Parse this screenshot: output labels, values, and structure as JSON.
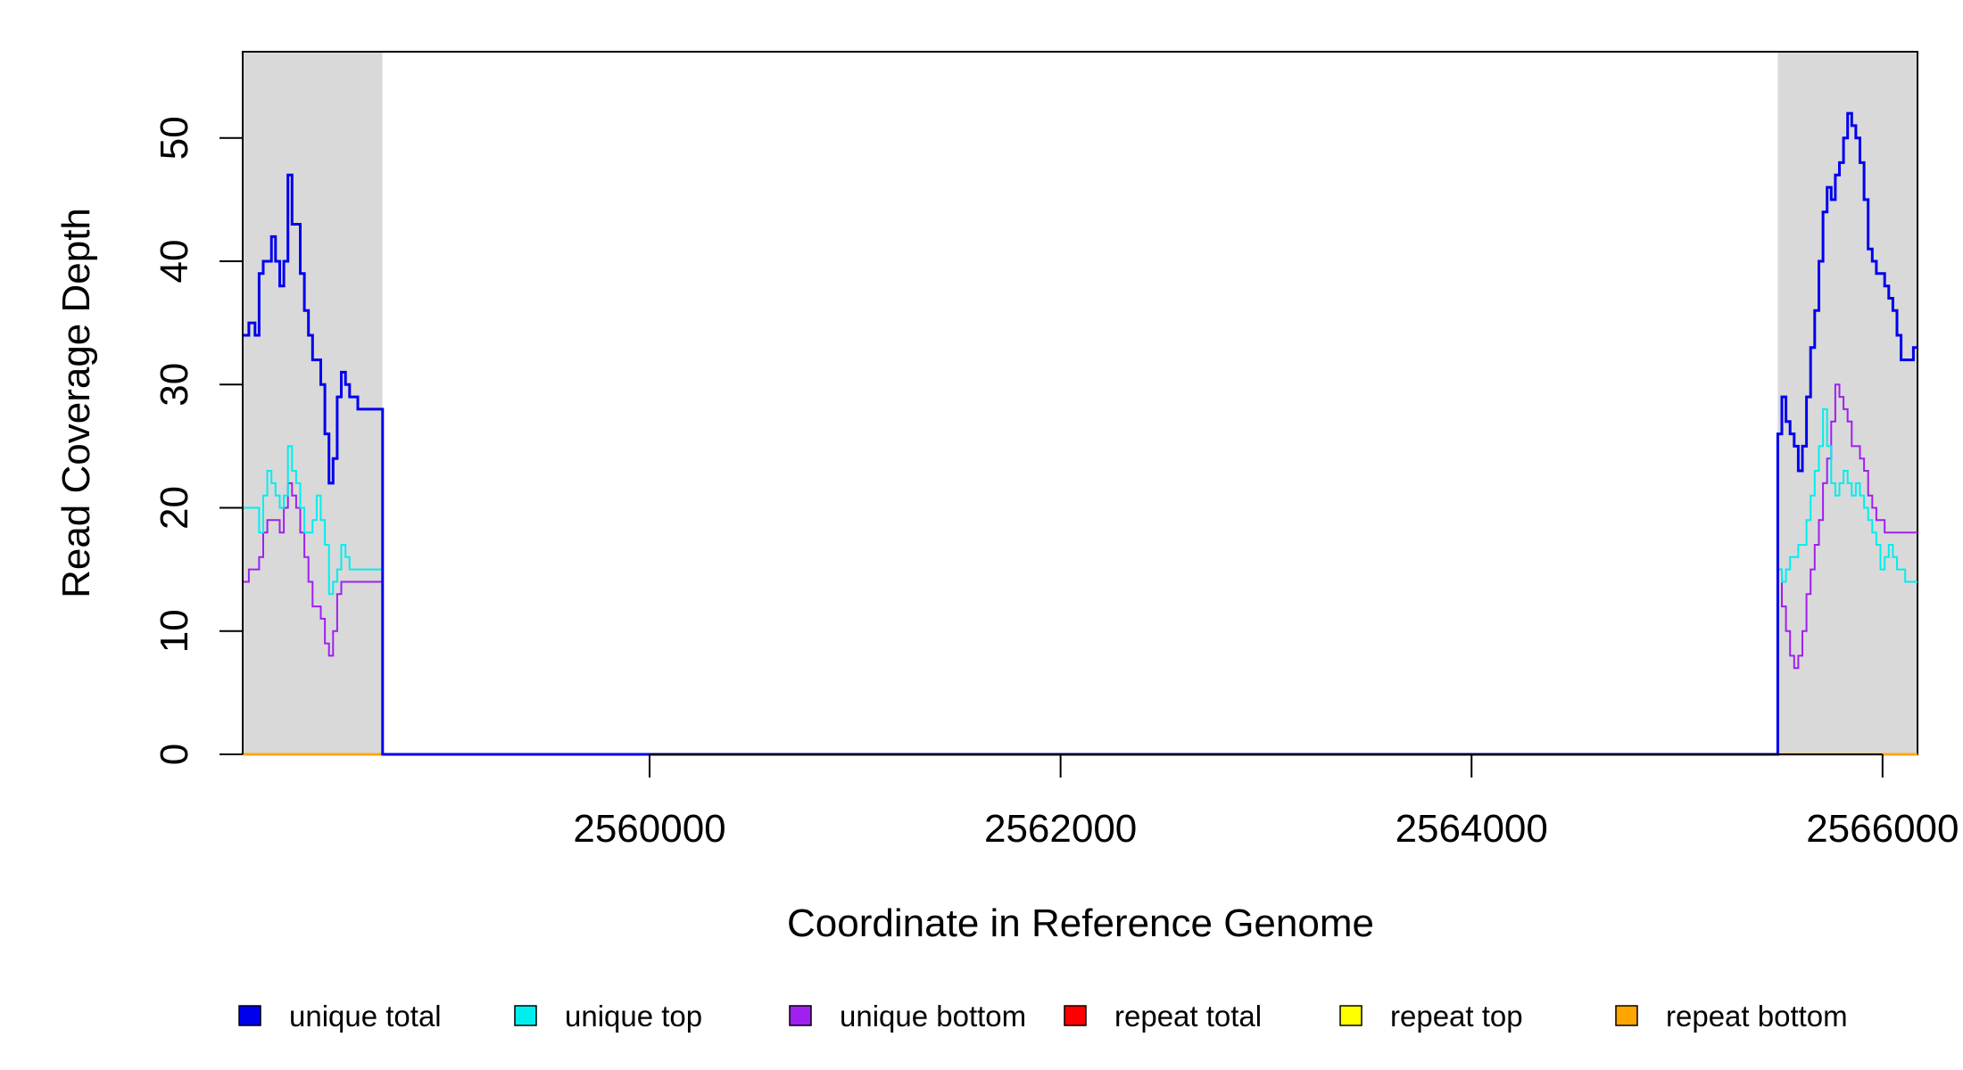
{
  "chart_data": {
    "type": "line",
    "title": "",
    "xlabel": "Coordinate in Reference Genome",
    "ylabel": "Read Coverage Depth",
    "xlim": [
      2558020,
      2566170
    ],
    "ylim": [
      0,
      57
    ],
    "x_ticks": [
      2560000,
      2562000,
      2564000,
      2566000
    ],
    "x_tick_labels": [
      "2560000",
      "2562000",
      "2564000",
      "2566000"
    ],
    "y_ticks": [
      0,
      10,
      20,
      30,
      40,
      50
    ],
    "y_tick_labels": [
      "0",
      "10",
      "20",
      "30",
      "40",
      "50"
    ],
    "highlight_regions": [
      {
        "start": 2558020,
        "end": 2558700,
        "color": "#d9d9d9"
      },
      {
        "start": 2565490,
        "end": 2566170,
        "color": "#d9d9d9"
      }
    ],
    "legend_position": "bottom",
    "series": [
      {
        "name": "unique total",
        "color": "#0000ee",
        "x": [
          2558020,
          2558050,
          2558080,
          2558100,
          2558120,
          2558140,
          2558160,
          2558180,
          2558200,
          2558220,
          2558240,
          2558260,
          2558280,
          2558300,
          2558320,
          2558340,
          2558360,
          2558380,
          2558400,
          2558420,
          2558440,
          2558460,
          2558480,
          2558500,
          2558520,
          2558540,
          2558560,
          2558580,
          2558600,
          2558620,
          2558640,
          2558660,
          2558680,
          2558700,
          2558701,
          2565489,
          2565490,
          2565510,
          2565530,
          2565550,
          2565570,
          2565590,
          2565610,
          2565630,
          2565650,
          2565670,
          2565690,
          2565710,
          2565730,
          2565750,
          2565770,
          2565790,
          2565810,
          2565830,
          2565850,
          2565870,
          2565890,
          2565910,
          2565930,
          2565950,
          2565970,
          2565990,
          2566010,
          2566030,
          2566050,
          2566070,
          2566090,
          2566110,
          2566130,
          2566150,
          2566170
        ],
        "y": [
          34,
          35,
          34,
          39,
          40,
          40,
          42,
          40,
          38,
          40,
          47,
          43,
          43,
          39,
          36,
          34,
          32,
          32,
          30,
          26,
          22,
          24,
          29,
          31,
          30,
          29,
          29,
          28,
          28,
          28,
          28,
          28,
          28,
          28,
          0,
          0,
          26,
          29,
          27,
          26,
          25,
          23,
          25,
          29,
          33,
          36,
          40,
          44,
          46,
          45,
          47,
          48,
          50,
          52,
          51,
          50,
          48,
          45,
          41,
          40,
          39,
          39,
          38,
          37,
          36,
          34,
          32,
          32,
          32,
          33,
          33
        ]
      },
      {
        "name": "unique top",
        "color": "#00eeee",
        "x": [
          2558020,
          2558050,
          2558080,
          2558100,
          2558120,
          2558140,
          2558160,
          2558180,
          2558200,
          2558220,
          2558240,
          2558260,
          2558280,
          2558300,
          2558320,
          2558340,
          2558360,
          2558380,
          2558400,
          2558420,
          2558440,
          2558460,
          2558480,
          2558500,
          2558520,
          2558540,
          2558560,
          2558580,
          2558600,
          2558620,
          2558640,
          2558660,
          2558680,
          2558700,
          2558701,
          2565489,
          2565490,
          2565510,
          2565530,
          2565550,
          2565570,
          2565590,
          2565610,
          2565630,
          2565650,
          2565670,
          2565690,
          2565710,
          2565730,
          2565750,
          2565770,
          2565790,
          2565810,
          2565830,
          2565850,
          2565870,
          2565890,
          2565910,
          2565930,
          2565950,
          2565970,
          2565990,
          2566010,
          2566030,
          2566050,
          2566070,
          2566090,
          2566110,
          2566130,
          2566150,
          2566170
        ],
        "y": [
          20,
          20,
          20,
          18,
          21,
          23,
          22,
          21,
          20,
          21,
          25,
          23,
          22,
          20,
          18,
          18,
          19,
          21,
          19,
          17,
          13,
          14,
          15,
          17,
          16,
          15,
          15,
          15,
          15,
          15,
          15,
          15,
          15,
          15,
          0,
          0,
          15,
          14,
          15,
          16,
          16,
          17,
          17,
          19,
          21,
          23,
          25,
          28,
          25,
          22,
          21,
          22,
          23,
          22,
          21,
          22,
          21,
          20,
          19,
          18,
          17,
          15,
          16,
          17,
          16,
          15,
          15,
          14,
          14,
          14,
          14
        ]
      },
      {
        "name": "unique bottom",
        "color": "#a020f0",
        "x": [
          2558020,
          2558050,
          2558080,
          2558100,
          2558120,
          2558140,
          2558160,
          2558180,
          2558200,
          2558220,
          2558240,
          2558260,
          2558280,
          2558300,
          2558320,
          2558340,
          2558360,
          2558380,
          2558400,
          2558420,
          2558440,
          2558460,
          2558480,
          2558500,
          2558520,
          2558540,
          2558560,
          2558580,
          2558600,
          2558620,
          2558640,
          2558660,
          2558680,
          2558700,
          2558701,
          2565489,
          2565490,
          2565510,
          2565530,
          2565550,
          2565570,
          2565590,
          2565610,
          2565630,
          2565650,
          2565670,
          2565690,
          2565710,
          2565730,
          2565750,
          2565770,
          2565790,
          2565810,
          2565830,
          2565850,
          2565870,
          2565890,
          2565910,
          2565930,
          2565950,
          2565970,
          2565990,
          2566010,
          2566030,
          2566050,
          2566070,
          2566090,
          2566110,
          2566130,
          2566150,
          2566170
        ],
        "y": [
          14,
          15,
          15,
          16,
          18,
          19,
          19,
          19,
          18,
          20,
          22,
          21,
          20,
          18,
          16,
          14,
          12,
          12,
          11,
          9,
          8,
          10,
          13,
          14,
          14,
          14,
          14,
          14,
          14,
          14,
          14,
          14,
          14,
          14,
          0,
          0,
          15,
          12,
          10,
          8,
          7,
          8,
          10,
          13,
          15,
          17,
          19,
          22,
          24,
          27,
          30,
          29,
          28,
          27,
          25,
          25,
          24,
          23,
          21,
          20,
          19,
          19,
          18,
          18,
          18,
          18,
          18,
          18,
          18,
          18,
          18
        ]
      },
      {
        "name": "repeat total",
        "color": "#ff0000",
        "x": [
          2558020,
          2566170
        ],
        "y": [
          0,
          0
        ]
      },
      {
        "name": "repeat top",
        "color": "#ffff00",
        "x": [
          2558020,
          2566170
        ],
        "y": [
          0,
          0
        ]
      },
      {
        "name": "repeat bottom",
        "color": "#ffa500",
        "x": [
          2558020,
          2566170
        ],
        "y": [
          0,
          0
        ]
      }
    ]
  }
}
